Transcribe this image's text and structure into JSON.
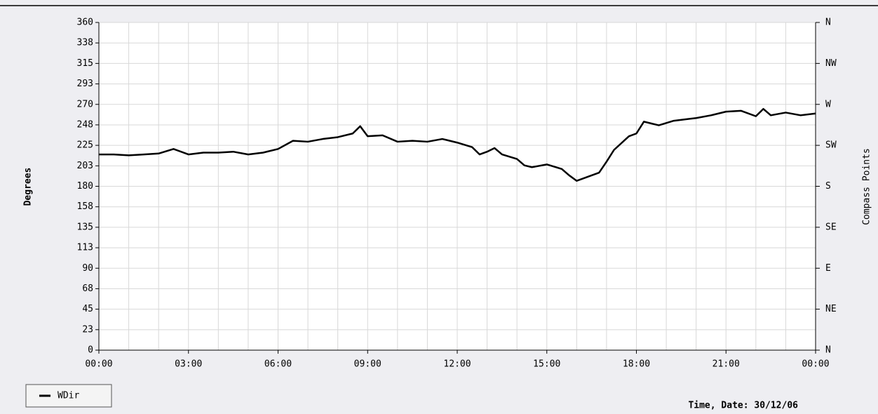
{
  "chart_data": {
    "type": "line",
    "x_label": "Time, Date: 30/12/06",
    "y_label": "Degrees",
    "y2_label": "Compass Points",
    "x": [
      0,
      0.5,
      1,
      1.5,
      2,
      2.5,
      3,
      3.5,
      4,
      4.5,
      5,
      5.5,
      6,
      6.5,
      7,
      7.5,
      8,
      8.5,
      8.75,
      9,
      9.5,
      10,
      10.5,
      11,
      11.5,
      12,
      12.5,
      12.75,
      13,
      13.25,
      13.5,
      14,
      14.25,
      14.5,
      15,
      15.5,
      15.75,
      16,
      16.5,
      16.75,
      17,
      17.25,
      17.75,
      18,
      18.25,
      18.75,
      19.25,
      19.75,
      20,
      20.5,
      21,
      21.5,
      22,
      22.25,
      22.5,
      23,
      23.5,
      24
    ],
    "series": [
      {
        "name": "WDir",
        "color": "#000000",
        "values": [
          215,
          215,
          214,
          215,
          216,
          221,
          215,
          217,
          217,
          218,
          215,
          217,
          221,
          230,
          229,
          232,
          234,
          238,
          246,
          235,
          236,
          229,
          230,
          229,
          232,
          228,
          223,
          215,
          218,
          222,
          215,
          210,
          203,
          201,
          204,
          199,
          192,
          186,
          192,
          195,
          207,
          220,
          235,
          238,
          251,
          247,
          252,
          254,
          255,
          258,
          262,
          263,
          257,
          265,
          258,
          261,
          258,
          260
        ]
      }
    ],
    "xlim": [
      0,
      24
    ],
    "xticks": [
      {
        "value": 0,
        "label": "00:00"
      },
      {
        "value": 3,
        "label": "03:00"
      },
      {
        "value": 6,
        "label": "06:00"
      },
      {
        "value": 9,
        "label": "09:00"
      },
      {
        "value": 12,
        "label": "12:00"
      },
      {
        "value": 15,
        "label": "15:00"
      },
      {
        "value": 18,
        "label": "18:00"
      },
      {
        "value": 21,
        "label": "21:00"
      },
      {
        "value": 24,
        "label": "00:00"
      }
    ],
    "xgrid_step": 1,
    "ylim": [
      0,
      360
    ],
    "yticks": [
      0,
      {
        "value": 22.5,
        "label": "23"
      },
      45,
      {
        "value": 67.5,
        "label": "68"
      },
      90,
      {
        "value": 112.5,
        "label": "113"
      },
      135,
      {
        "value": 157.5,
        "label": "158"
      },
      180,
      {
        "value": 202.5,
        "label": "203"
      },
      225,
      {
        "value": 247.5,
        "label": "248"
      },
      270,
      {
        "value": 292.5,
        "label": "293"
      },
      315,
      {
        "value": 337.5,
        "label": "338"
      },
      360
    ],
    "y2lim": [
      0,
      360
    ],
    "y2ticks": [
      {
        "value": 0,
        "label": "N"
      },
      {
        "value": 45,
        "label": "NE"
      },
      {
        "value": 90,
        "label": "E"
      },
      {
        "value": 135,
        "label": "SE"
      },
      {
        "value": 180,
        "label": "S"
      },
      {
        "value": 225,
        "label": "SW"
      },
      {
        "value": 270,
        "label": "W"
      },
      {
        "value": 315,
        "label": "NW"
      },
      {
        "value": 360,
        "label": "N"
      }
    ],
    "grid": true
  }
}
